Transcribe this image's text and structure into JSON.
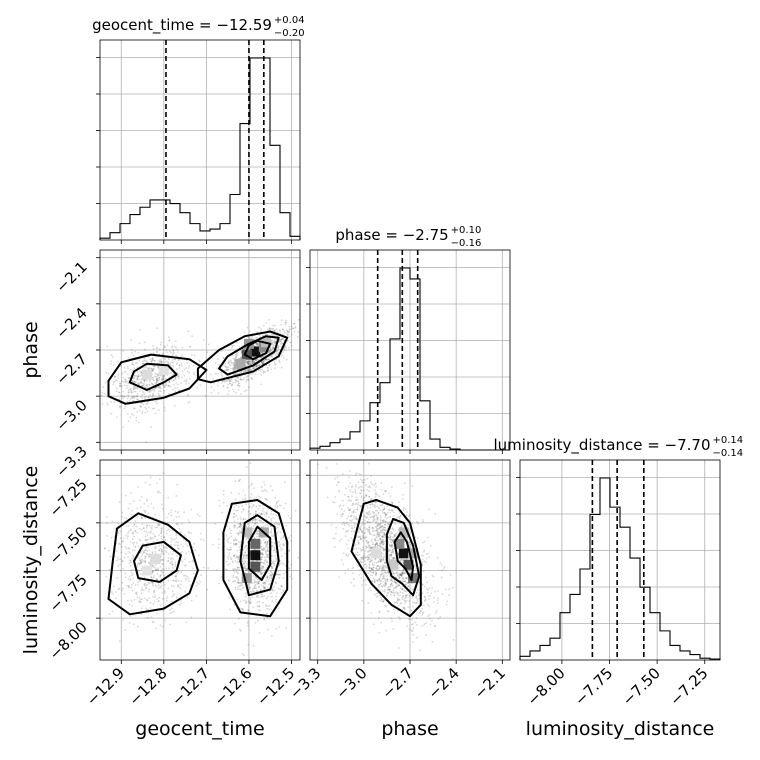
{
  "chart_data": {
    "type": "corner",
    "grid": true,
    "parameters": [
      {
        "name": "geocent_time",
        "axis_label": "geocent_time",
        "title_prefix": "geocent_time = ",
        "median": "−12.59",
        "upper_err": "+0.04",
        "lower_err": "−0.20",
        "range": [
          -12.95,
          -12.48
        ],
        "ticks": [
          -12.9,
          -12.8,
          -12.7,
          -12.6,
          -12.5
        ],
        "tick_labels": [
          "−12.9",
          "−12.8",
          "−12.7",
          "−12.6",
          "−12.5"
        ],
        "quantiles": [
          -12.795,
          -12.6,
          -12.565
        ],
        "histogram": {
          "edges": [
            -12.95,
            -12.9265,
            -12.903,
            -12.8795,
            -12.856,
            -12.8325,
            -12.809,
            -12.7855,
            -12.762,
            -12.7385,
            -12.715,
            -12.6915,
            -12.668,
            -12.6445,
            -12.621,
            -12.5975,
            -12.574,
            -12.5505,
            -12.527,
            -12.5035,
            -12.48
          ],
          "counts": [
            0.1,
            0.4,
            0.9,
            1.4,
            1.8,
            2.2,
            2.2,
            2.0,
            1.5,
            0.9,
            0.5,
            0.6,
            0.9,
            2.5,
            6.4,
            10.0,
            10.0,
            5.2,
            1.5,
            0.2
          ]
        }
      },
      {
        "name": "phase",
        "axis_label": "phase",
        "title_prefix": "phase = ",
        "median": "−2.75",
        "upper_err": "+0.10",
        "lower_err": "−0.16",
        "range": [
          -3.35,
          -2.05
        ],
        "ticks": [
          -3.3,
          -3.0,
          -2.7,
          -2.4,
          -2.1
        ],
        "tick_labels": [
          "−3.3",
          "−3.0",
          "−2.7",
          "−2.4",
          "−2.1"
        ],
        "quantiles": [
          -2.91,
          -2.75,
          -2.65
        ],
        "histogram": {
          "edges": [
            -3.35,
            -3.285,
            -3.22,
            -3.155,
            -3.09,
            -3.025,
            -2.96,
            -2.895,
            -2.83,
            -2.765,
            -2.7,
            -2.635,
            -2.57,
            -2.505,
            -2.44,
            -2.375,
            -2.31,
            -2.245,
            -2.18,
            -2.115,
            -2.05
          ],
          "counts": [
            0.1,
            0.2,
            0.4,
            0.6,
            1.0,
            1.6,
            2.6,
            3.7,
            6.1,
            10.0,
            9.4,
            2.7,
            0.6,
            0.15,
            0.05,
            0,
            0,
            0,
            0,
            0
          ]
        }
      },
      {
        "name": "luminosity_distance",
        "axis_label": "luminosity_distance",
        "title_prefix": "luminosity_distance = ",
        "median": "−7.70",
        "upper_err": "+0.14",
        "lower_err": "−0.14",
        "range": [
          -8.22,
          -7.17
        ],
        "ticks": [
          -8.0,
          -7.75,
          -7.5,
          -7.25
        ],
        "tick_labels": [
          "−8.00",
          "−7.75",
          "−7.50",
          "−7.25"
        ],
        "quantiles": [
          -7.84,
          -7.71,
          -7.57
        ],
        "histogram": {
          "edges": [
            -8.22,
            -8.1675,
            -8.115,
            -8.0625,
            -8.01,
            -7.9575,
            -7.905,
            -7.8525,
            -7.8,
            -7.7475,
            -7.695,
            -7.6425,
            -7.59,
            -7.5375,
            -7.485,
            -7.4325,
            -7.38,
            -7.3275,
            -7.275,
            -7.2225,
            -7.17
          ],
          "counts": [
            0.2,
            0.5,
            0.8,
            1.2,
            2.6,
            3.6,
            5.0,
            8.0,
            10.0,
            8.4,
            7.3,
            5.6,
            4.0,
            2.6,
            1.6,
            0.8,
            0.5,
            0.3,
            0.1,
            0.05
          ]
        }
      }
    ],
    "contours": [
      {
        "x_param": "geocent_time",
        "y_param": "phase",
        "levels": [
          [
            [
              -12.84,
              -2.96
            ],
            [
              -12.8,
              -2.91
            ],
            [
              -12.77,
              -2.86
            ],
            [
              -12.79,
              -2.8
            ],
            [
              -12.84,
              -2.79
            ],
            [
              -12.87,
              -2.84
            ],
            [
              -12.88,
              -2.91
            ]
          ],
          [
            [
              -12.89,
              -3.05
            ],
            [
              -12.8,
              -3.01
            ],
            [
              -12.74,
              -2.95
            ],
            [
              -12.7,
              -2.83
            ],
            [
              -12.74,
              -2.76
            ],
            [
              -12.83,
              -2.73
            ],
            [
              -12.9,
              -2.78
            ],
            [
              -12.93,
              -2.9
            ],
            [
              -12.93,
              -3.0
            ]
          ],
          [
            [
              -12.58,
              -2.64
            ],
            [
              -12.55,
              -2.66
            ],
            [
              -12.56,
              -2.72
            ],
            [
              -12.59,
              -2.76
            ],
            [
              -12.61,
              -2.73
            ],
            [
              -12.6,
              -2.67
            ]
          ],
          [
            [
              -12.65,
              -2.86
            ],
            [
              -12.59,
              -2.8
            ],
            [
              -12.54,
              -2.71
            ],
            [
              -12.53,
              -2.62
            ],
            [
              -12.56,
              -2.61
            ],
            [
              -12.6,
              -2.66
            ],
            [
              -12.65,
              -2.74
            ],
            [
              -12.67,
              -2.82
            ]
          ],
          [
            [
              -12.69,
              -2.91
            ],
            [
              -12.59,
              -2.84
            ],
            [
              -12.53,
              -2.74
            ],
            [
              -12.51,
              -2.62
            ],
            [
              -12.55,
              -2.58
            ],
            [
              -12.61,
              -2.61
            ],
            [
              -12.67,
              -2.7
            ],
            [
              -12.72,
              -2.82
            ],
            [
              -12.72,
              -2.89
            ]
          ]
        ]
      },
      {
        "x_param": "geocent_time",
        "y_param": "luminosity_distance",
        "levels": [
          [
            [
              -12.86,
              -7.79
            ],
            [
              -12.81,
              -7.81
            ],
            [
              -12.77,
              -7.75
            ],
            [
              -12.76,
              -7.67
            ],
            [
              -12.8,
              -7.6
            ],
            [
              -12.85,
              -7.62
            ],
            [
              -12.87,
              -7.7
            ]
          ],
          [
            [
              -12.88,
              -7.98
            ],
            [
              -12.8,
              -7.95
            ],
            [
              -12.74,
              -7.87
            ],
            [
              -12.72,
              -7.75
            ],
            [
              -12.74,
              -7.6
            ],
            [
              -12.79,
              -7.51
            ],
            [
              -12.86,
              -7.45
            ],
            [
              -12.91,
              -7.53
            ],
            [
              -12.92,
              -7.7
            ],
            [
              -12.93,
              -7.9
            ]
          ],
          [
            [
              -12.58,
              -7.52
            ],
            [
              -12.55,
              -7.58
            ],
            [
              -12.55,
              -7.72
            ],
            [
              -12.57,
              -7.8
            ],
            [
              -12.6,
              -7.74
            ],
            [
              -12.6,
              -7.6
            ]
          ],
          [
            [
              -12.6,
              -7.88
            ],
            [
              -12.55,
              -7.85
            ],
            [
              -12.53,
              -7.7
            ],
            [
              -12.54,
              -7.52
            ],
            [
              -12.58,
              -7.46
            ],
            [
              -12.61,
              -7.5
            ],
            [
              -12.62,
              -7.7
            ]
          ],
          [
            [
              -12.62,
              -7.97
            ],
            [
              -12.55,
              -7.99
            ],
            [
              -12.51,
              -7.85
            ],
            [
              -12.51,
              -7.6
            ],
            [
              -12.53,
              -7.45
            ],
            [
              -12.58,
              -7.38
            ],
            [
              -12.64,
              -7.4
            ],
            [
              -12.66,
              -7.55
            ],
            [
              -12.66,
              -7.8
            ]
          ]
        ]
      },
      {
        "x_param": "phase",
        "y_param": "luminosity_distance",
        "levels": [
          [
            [
              -2.78,
              -7.7
            ],
            [
              -2.73,
              -7.74
            ],
            [
              -2.69,
              -7.8
            ],
            [
              -2.68,
              -7.73
            ],
            [
              -2.72,
              -7.6
            ],
            [
              -2.76,
              -7.55
            ],
            [
              -2.8,
              -7.6
            ]
          ],
          [
            [
              -2.82,
              -7.78
            ],
            [
              -2.75,
              -7.82
            ],
            [
              -2.68,
              -7.88
            ],
            [
              -2.64,
              -7.78
            ],
            [
              -2.68,
              -7.62
            ],
            [
              -2.74,
              -7.5
            ],
            [
              -2.81,
              -7.48
            ],
            [
              -2.85,
              -7.56
            ],
            [
              -2.85,
              -7.7
            ]
          ],
          [
            [
              -3.08,
              -7.65
            ],
            [
              -2.95,
              -7.82
            ],
            [
              -2.82,
              -7.93
            ],
            [
              -2.7,
              -7.99
            ],
            [
              -2.63,
              -7.93
            ],
            [
              -2.63,
              -7.72
            ],
            [
              -2.7,
              -7.5
            ],
            [
              -2.78,
              -7.42
            ],
            [
              -2.92,
              -7.38
            ],
            [
              -3.0,
              -7.4
            ],
            [
              -3.05,
              -7.55
            ]
          ]
        ]
      }
    ]
  }
}
